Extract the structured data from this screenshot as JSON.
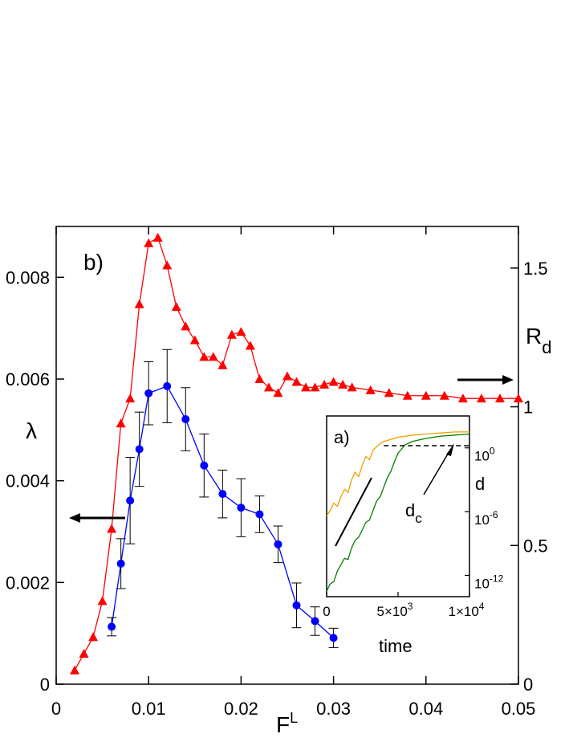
{
  "chart_data": [
    {
      "panel": "b)",
      "type": "line",
      "xlabel": "F",
      "xlabel_superscript": "L",
      "ylabel_left": "λ",
      "ylabel_right": "R",
      "ylabel_right_subscript": "d",
      "xlim": [
        0,
        0.05
      ],
      "ylim_left": [
        0,
        0.009
      ],
      "ylim_right": [
        0,
        1.65
      ],
      "x_ticks": [
        0,
        0.01,
        0.02,
        0.03,
        0.04,
        0.05
      ],
      "x_tick_labels": [
        "0",
        "0.01",
        "0.02",
        "0.03",
        "0.04",
        "0.05"
      ],
      "y_left_ticks": [
        0,
        0.002,
        0.004,
        0.006,
        0.008
      ],
      "y_left_tick_labels": [
        "0",
        "0.002",
        "0.004",
        "0.006",
        "0.008"
      ],
      "y_right_ticks": [
        0,
        0.5,
        1,
        1.5
      ],
      "y_right_tick_labels": [
        "0",
        "0.5",
        "1",
        "1.5"
      ],
      "series": [
        {
          "name": "R_d",
          "axis": "right",
          "color": "#ff0000",
          "marker": "triangle",
          "x": [
            0.002,
            0.003,
            0.004,
            0.005,
            0.006,
            0.007,
            0.008,
            0.009,
            0.01,
            0.011,
            0.012,
            0.013,
            0.014,
            0.015,
            0.016,
            0.017,
            0.018,
            0.019,
            0.02,
            0.021,
            0.022,
            0.023,
            0.024,
            0.025,
            0.026,
            0.027,
            0.028,
            0.029,
            0.03,
            0.031,
            0.032,
            0.034,
            0.036,
            0.038,
            0.04,
            0.042,
            0.044,
            0.046,
            0.048,
            0.05
          ],
          "values": [
            0.05,
            0.11,
            0.17,
            0.3,
            0.56,
            0.94,
            1.03,
            1.37,
            1.59,
            1.61,
            1.51,
            1.36,
            1.29,
            1.24,
            1.18,
            1.18,
            1.15,
            1.26,
            1.27,
            1.22,
            1.1,
            1.07,
            1.05,
            1.11,
            1.09,
            1.07,
            1.07,
            1.08,
            1.09,
            1.08,
            1.07,
            1.06,
            1.05,
            1.04,
            1.04,
            1.04,
            1.03,
            1.03,
            1.03,
            1.03
          ]
        },
        {
          "name": "λ",
          "axis": "left",
          "color": "#0000ff",
          "marker": "circle",
          "x": [
            0.006,
            0.007,
            0.008,
            0.009,
            0.01,
            0.012,
            0.014,
            0.016,
            0.018,
            0.02,
            0.022,
            0.024,
            0.026,
            0.028,
            0.03
          ],
          "values": [
            0.00113,
            0.00237,
            0.00361,
            0.00462,
            0.00572,
            0.00586,
            0.00521,
            0.0043,
            0.00374,
            0.00347,
            0.00334,
            0.00275,
            0.00155,
            0.00124,
            0.00091
          ],
          "error": [
            0.00018,
            0.00049,
            0.00085,
            0.00073,
            0.00062,
            0.00072,
            0.00062,
            0.00062,
            0.00047,
            0.00057,
            0.00036,
            0.00036,
            0.00044,
            0.00028,
            0.00019
          ]
        }
      ],
      "annotations": [
        {
          "text": "",
          "description": "left arrow near λ curve"
        },
        {
          "text": "",
          "description": "right arrow near R_d curve"
        }
      ]
    },
    {
      "panel": "a)",
      "type": "line",
      "xlabel": "time",
      "ylabel": "d",
      "x_tick_labels": [
        "0",
        "5×10",
        "1×10"
      ],
      "x_tick_exponents": [
        "",
        "3",
        "4"
      ],
      "y_tick_labels": [
        "10",
        "10",
        "10"
      ],
      "y_tick_exponents": [
        "0",
        "-6",
        "-12"
      ],
      "label_threshold": "d",
      "label_threshold_subscript": "c",
      "xlim": [
        0,
        10000
      ],
      "log10_ylim": [
        -14,
        3
      ],
      "series": [
        {
          "name": "orange trajectory",
          "color": "#f0a000",
          "x": [
            0,
            250,
            500,
            750,
            1000,
            1250,
            1500,
            1750,
            2000,
            2250,
            2500,
            2750,
            3000,
            3250,
            3500,
            3750,
            4000,
            5000,
            6000,
            7000,
            8000,
            9000,
            10000
          ],
          "log10_values": [
            -6.4,
            -5.9,
            -5.2,
            -5.5,
            -4.6,
            -3.9,
            -4.2,
            -3.0,
            -2.3,
            -2.7,
            -1.6,
            -0.8,
            -1.1,
            -0.2,
            0.1,
            0.4,
            0.6,
            1.0,
            1.2,
            1.3,
            1.4,
            1.5,
            1.5
          ]
        },
        {
          "name": "green trajectory",
          "color": "#008000",
          "x": [
            0,
            250,
            500,
            750,
            1000,
            1250,
            1500,
            1750,
            2000,
            2250,
            2500,
            2750,
            3000,
            3250,
            3500,
            3750,
            4000,
            4250,
            4500,
            4750,
            5000,
            5500,
            6000,
            7000,
            8000,
            9000,
            10000
          ],
          "log10_values": [
            -13.5,
            -12.8,
            -12.6,
            -11.6,
            -11.0,
            -10.4,
            -10.5,
            -9.4,
            -8.7,
            -8.4,
            -7.7,
            -7.0,
            -6.8,
            -5.9,
            -5.0,
            -4.6,
            -3.7,
            -2.8,
            -2.2,
            -1.3,
            -0.5,
            0.3,
            0.6,
            0.9,
            1.1,
            1.2,
            1.3
          ]
        }
      ],
      "threshold_log10": 0.2
    }
  ]
}
